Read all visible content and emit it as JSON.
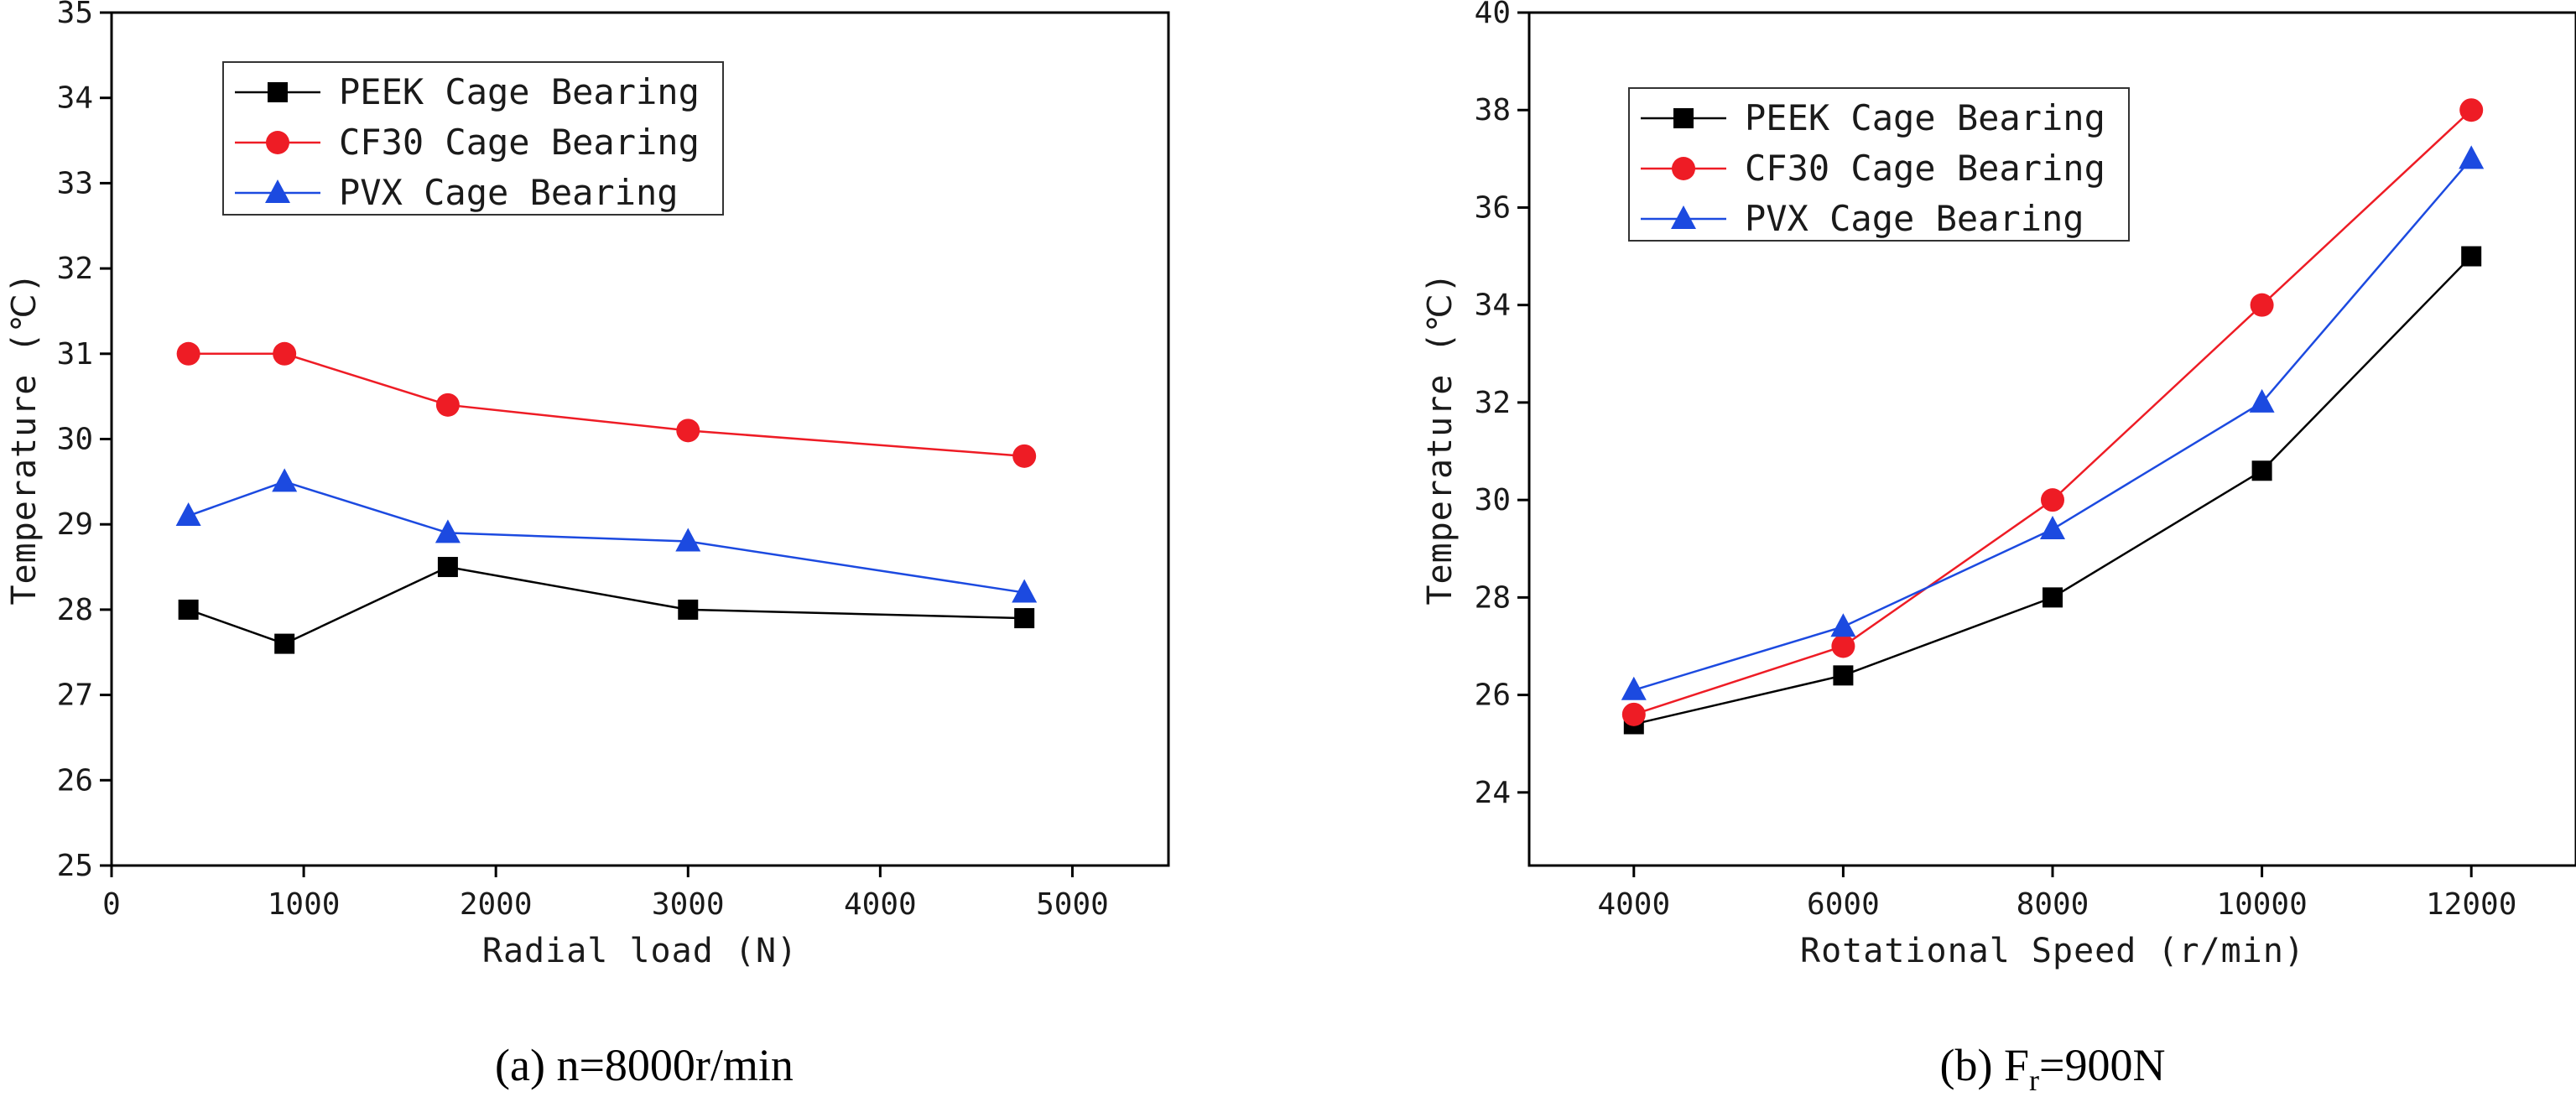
{
  "chart_data": [
    {
      "type": "line",
      "caption": "(a) n=8000r/min",
      "xlabel": "Radial load (N)",
      "ylabel": "Temperature (℃)",
      "xlim": [
        0,
        5500
      ],
      "ylim": [
        25,
        35
      ],
      "xticks": [
        0,
        1000,
        2000,
        3000,
        4000,
        5000
      ],
      "yticks": [
        25,
        26,
        27,
        28,
        29,
        30,
        31,
        32,
        33,
        34,
        35
      ],
      "legend_position": "top-left",
      "grid": false,
      "series": [
        {
          "name": "PEEK Cage Bearing",
          "color": "#000000",
          "marker": "square",
          "x": [
            400,
            900,
            1750,
            3000,
            4750
          ],
          "y": [
            28.0,
            27.6,
            28.5,
            28.0,
            27.9
          ]
        },
        {
          "name": "CF30 Cage Bearing",
          "color": "#ee1c25",
          "marker": "circle",
          "x": [
            400,
            900,
            1750,
            3000,
            4750
          ],
          "y": [
            31.0,
            31.0,
            30.4,
            30.1,
            29.8
          ]
        },
        {
          "name": "PVX Cage Bearing",
          "color": "#1c4ae0",
          "marker": "triangle",
          "x": [
            400,
            900,
            1750,
            3000,
            4750
          ],
          "y": [
            29.1,
            29.5,
            28.9,
            28.8,
            28.2
          ]
        }
      ]
    },
    {
      "type": "line",
      "caption": "(b) Fr=900N",
      "caption_parts": {
        "prefix": "(b) F",
        "sub": "r",
        "suffix": "=900N"
      },
      "xlabel": "Rotational Speed (r/min)",
      "ylabel": "Temperature (℃)",
      "xlim": [
        3000,
        13000
      ],
      "ylim": [
        22.5,
        40
      ],
      "xticks": [
        4000,
        6000,
        8000,
        10000,
        12000
      ],
      "yticks": [
        24,
        26,
        28,
        30,
        32,
        34,
        36,
        38,
        40
      ],
      "legend_position": "top-left",
      "grid": false,
      "series": [
        {
          "name": "PEEK Cage Bearing",
          "color": "#000000",
          "marker": "square",
          "x": [
            4000,
            6000,
            8000,
            10000,
            12000
          ],
          "y": [
            25.4,
            26.4,
            28.0,
            30.6,
            35.0
          ]
        },
        {
          "name": "CF30 Cage Bearing",
          "color": "#ee1c25",
          "marker": "circle",
          "x": [
            4000,
            6000,
            8000,
            10000,
            12000
          ],
          "y": [
            25.6,
            27.0,
            30.0,
            34.0,
            38.0
          ]
        },
        {
          "name": "PVX Cage Bearing",
          "color": "#1c4ae0",
          "marker": "triangle",
          "x": [
            4000,
            6000,
            8000,
            10000,
            12000
          ],
          "y": [
            26.1,
            27.4,
            29.4,
            32.0,
            37.0
          ]
        }
      ]
    }
  ]
}
